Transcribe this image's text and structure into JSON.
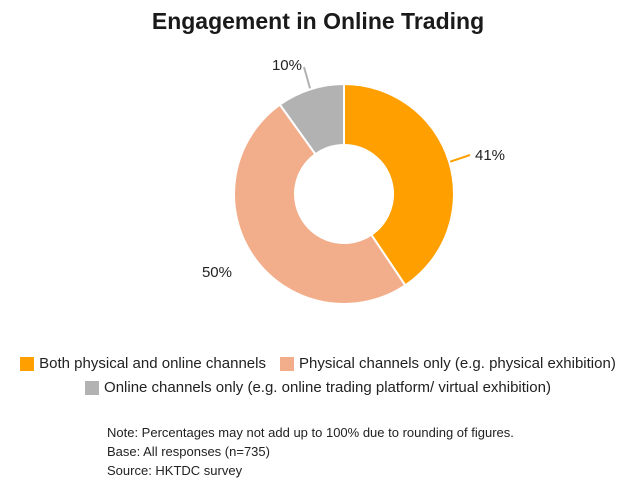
{
  "chart_data": {
    "type": "pie",
    "subtype": "donut",
    "title": "Engagement in Online Trading",
    "categories": [
      "Both physical and online channels",
      "Physical channels only (e.g. physical exhibition)",
      "Online channels only (e.g. online trading platform/ virtual exhibition)"
    ],
    "values": [
      41,
      50,
      10
    ],
    "value_labels": [
      "41%",
      "50%",
      "10%"
    ],
    "colors": [
      "#FF9F00",
      "#F2AE8B",
      "#B2B2B2"
    ],
    "legend_position": "bottom"
  },
  "notes": {
    "note": "Note: Percentages may not add up to 100% due to rounding of figures.",
    "base": "Base: All responses (n=735)",
    "source": "Source: HKTDC survey"
  }
}
